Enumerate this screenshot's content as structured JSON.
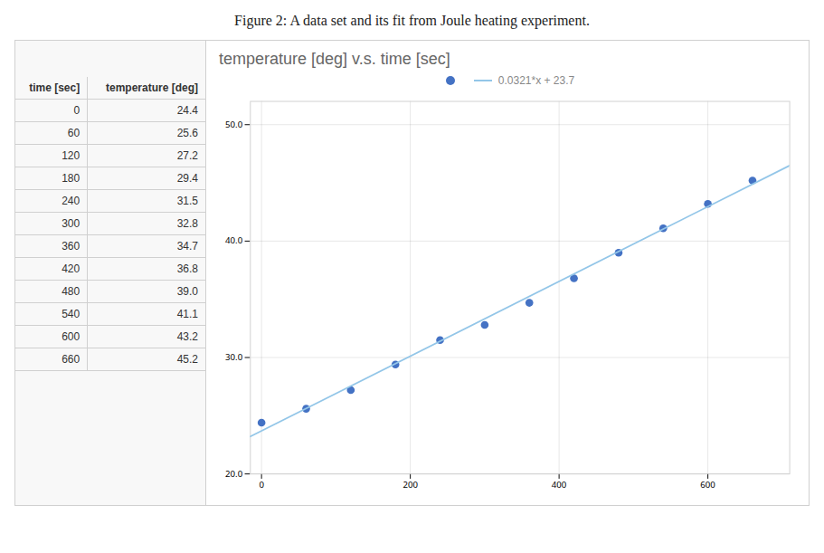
{
  "chart_data": {
    "type": "scatter",
    "title": "Figure 2: A data set and its fit from Joule heating experiment.",
    "subtitle": "temperature [deg] v.s. time [sec]",
    "x_label": "time [sec]",
    "y_label": "temperature [deg]",
    "x": [
      0,
      60,
      120,
      180,
      240,
      300,
      360,
      420,
      480,
      540,
      600,
      660
    ],
    "series": [
      {
        "type": "scatter",
        "marker": "circle",
        "color": "#4472c4",
        "values": [
          24.4,
          25.6,
          27.2,
          29.4,
          31.5,
          32.8,
          34.7,
          36.8,
          39.0,
          41.1,
          43.2,
          45.2
        ]
      },
      {
        "name": "0.0321*x + 23.7",
        "type": "line",
        "color": "#93c6e8",
        "x": [
          -15,
          710
        ],
        "values": [
          23.2185,
          46.491
        ]
      }
    ],
    "xlim": [
      -15,
      710
    ],
    "ylim": [
      20.0,
      52.0
    ],
    "xticks": [
      0,
      200,
      400,
      600
    ],
    "yticks": [
      {
        "value": 20.0,
        "label": "20.0"
      },
      {
        "value": 30.0,
        "label": "30.0"
      },
      {
        "value": 40.0,
        "label": "40.0"
      },
      {
        "value": 50.0,
        "label": "50.0"
      }
    ],
    "grid": true,
    "legend": "top"
  }
}
